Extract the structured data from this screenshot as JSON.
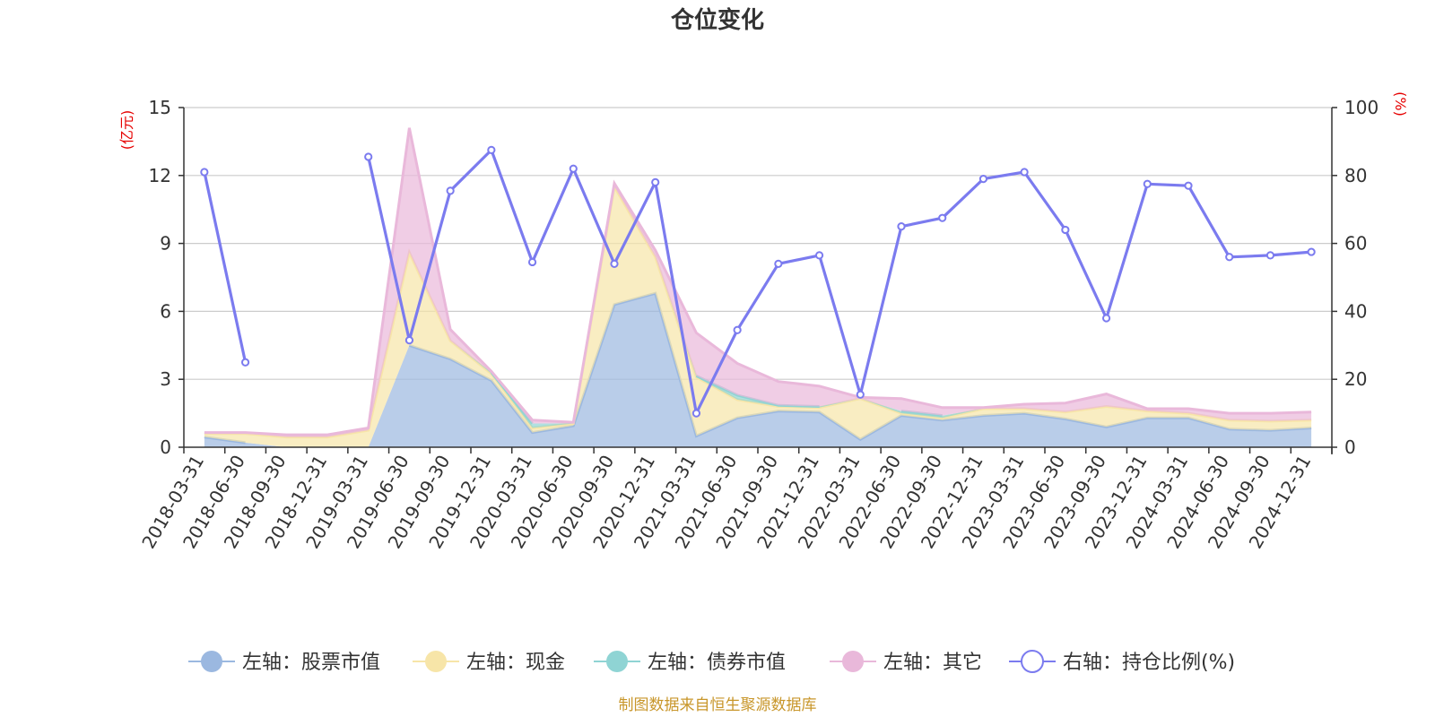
{
  "chart_data": {
    "type": "area",
    "title": "仓位变化",
    "y_left_unit": "(亿元)",
    "y_right_unit": "(%)",
    "ylim_left": [
      0,
      15
    ],
    "ylim_right": [
      0,
      100
    ],
    "y_left_ticks": [
      "0",
      "3",
      "6",
      "9",
      "12",
      "15"
    ],
    "y_right_ticks": [
      "0",
      "20",
      "40",
      "60",
      "80",
      "100"
    ],
    "grid": true,
    "legend_position": "bottom",
    "x": [
      "2018-03-31",
      "2018-06-30",
      "2018-09-30",
      "2018-12-31",
      "2019-03-31",
      "2019-06-30",
      "2019-09-30",
      "2019-12-31",
      "2020-03-31",
      "2020-06-30",
      "2020-09-30",
      "2020-12-31",
      "2021-03-31",
      "2021-06-30",
      "2021-09-30",
      "2021-12-31",
      "2022-03-31",
      "2022-06-30",
      "2022-09-30",
      "2022-12-31",
      "2023-03-31",
      "2023-06-30",
      "2023-09-30",
      "2023-12-31",
      "2024-03-31",
      "2024-06-30",
      "2024-09-30",
      "2024-12-31"
    ],
    "series": [
      {
        "name": "左轴：股票市值",
        "axis": "left",
        "stack": true,
        "color": "#9bb8e0",
        "values": [
          0.45,
          0.2,
          null,
          null,
          null,
          4.5,
          3.9,
          2.95,
          0.65,
          0.95,
          6.3,
          6.8,
          0.5,
          1.3,
          1.6,
          1.55,
          0.35,
          1.4,
          1.2,
          1.4,
          1.5,
          1.25,
          0.9,
          1.3,
          1.3,
          0.8,
          0.75,
          0.85
        ]
      },
      {
        "name": "左轴：现金",
        "axis": "left",
        "stack": true,
        "color": "#f7e5a8",
        "values": [
          0.15,
          0.4,
          0.45,
          0.45,
          0.75,
          4.1,
          0.8,
          0.3,
          0.2,
          0.1,
          5.2,
          1.6,
          2.6,
          0.8,
          0.2,
          0.2,
          1.8,
          0.1,
          0.1,
          0.3,
          0.2,
          0.3,
          0.9,
          0.3,
          0.2,
          0.4,
          0.4,
          0.35
        ]
      },
      {
        "name": "左轴：债券市值",
        "axis": "left",
        "stack": true,
        "color": "#8fd4d4",
        "values": [
          null,
          null,
          null,
          null,
          null,
          null,
          null,
          0.05,
          0.2,
          null,
          null,
          null,
          0.05,
          0.2,
          0.05,
          0.05,
          null,
          0.1,
          0.1,
          null,
          null,
          null,
          null,
          null,
          null,
          null,
          null,
          null
        ]
      },
      {
        "name": "左轴：其它",
        "axis": "left",
        "stack": true,
        "color": "#e9b8da",
        "values": [
          0.05,
          0.05,
          0.1,
          0.1,
          0.1,
          5.5,
          0.5,
          0.05,
          0.15,
          0.05,
          0.15,
          0.3,
          1.9,
          1.4,
          1.05,
          0.9,
          0.05,
          0.55,
          0.35,
          0.05,
          0.2,
          0.4,
          0.55,
          0.1,
          0.2,
          0.3,
          0.35,
          0.35
        ]
      },
      {
        "name": "右轴：持仓比例(%)",
        "axis": "right",
        "type": "line",
        "color": "#7b7bef",
        "values": [
          81,
          25,
          null,
          null,
          85.5,
          31.5,
          75.5,
          87.5,
          54.5,
          82,
          54,
          78,
          10,
          34.5,
          54,
          56.5,
          15.5,
          65,
          67.5,
          79,
          81,
          64,
          38,
          77.5,
          77,
          56,
          56.5,
          57.5
        ]
      }
    ]
  },
  "source_text": "制图数据来自恒生聚源数据库"
}
